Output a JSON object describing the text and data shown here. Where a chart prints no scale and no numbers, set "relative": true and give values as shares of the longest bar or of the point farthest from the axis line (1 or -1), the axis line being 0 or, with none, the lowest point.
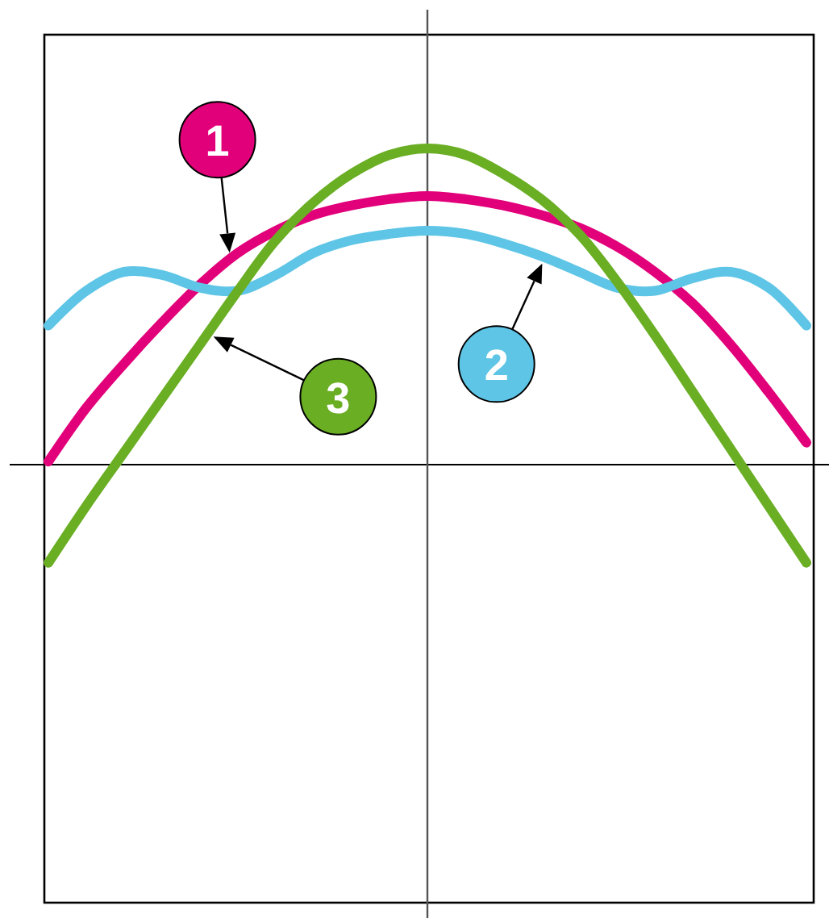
{
  "chart_data": {
    "type": "line",
    "relative": true,
    "categories": [
      null,
      null,
      null,
      null,
      null,
      null,
      null,
      null,
      null,
      null,
      null,
      null,
      null,
      null,
      null,
      null,
      null,
      null,
      null,
      null,
      null
    ],
    "series": [
      {
        "name": "1",
        "color": "#e2007a",
        "values": [
          0.01,
          0.18,
          0.32,
          0.45,
          0.57,
          0.67,
          0.74,
          0.79,
          0.82,
          0.84,
          0.85,
          0.84,
          0.82,
          0.79,
          0.75,
          0.69,
          0.61,
          0.51,
          0.38,
          0.23,
          0.07
        ]
      },
      {
        "name": "2",
        "color": "#5ec5e6",
        "values": [
          0.44,
          0.55,
          0.61,
          0.6,
          0.56,
          0.55,
          0.6,
          0.67,
          0.71,
          0.73,
          0.74,
          0.73,
          0.7,
          0.66,
          0.61,
          0.56,
          0.55,
          0.59,
          0.61,
          0.56,
          0.44
        ]
      },
      {
        "name": "3",
        "color": "#6aae24",
        "values": [
          -0.31,
          -0.13,
          0.04,
          0.21,
          0.38,
          0.55,
          0.71,
          0.83,
          0.92,
          0.98,
          1,
          0.98,
          0.92,
          0.84,
          0.73,
          0.58,
          0.41,
          0.23,
          0.05,
          -0.13,
          -0.31
        ]
      }
    ]
  }
}
